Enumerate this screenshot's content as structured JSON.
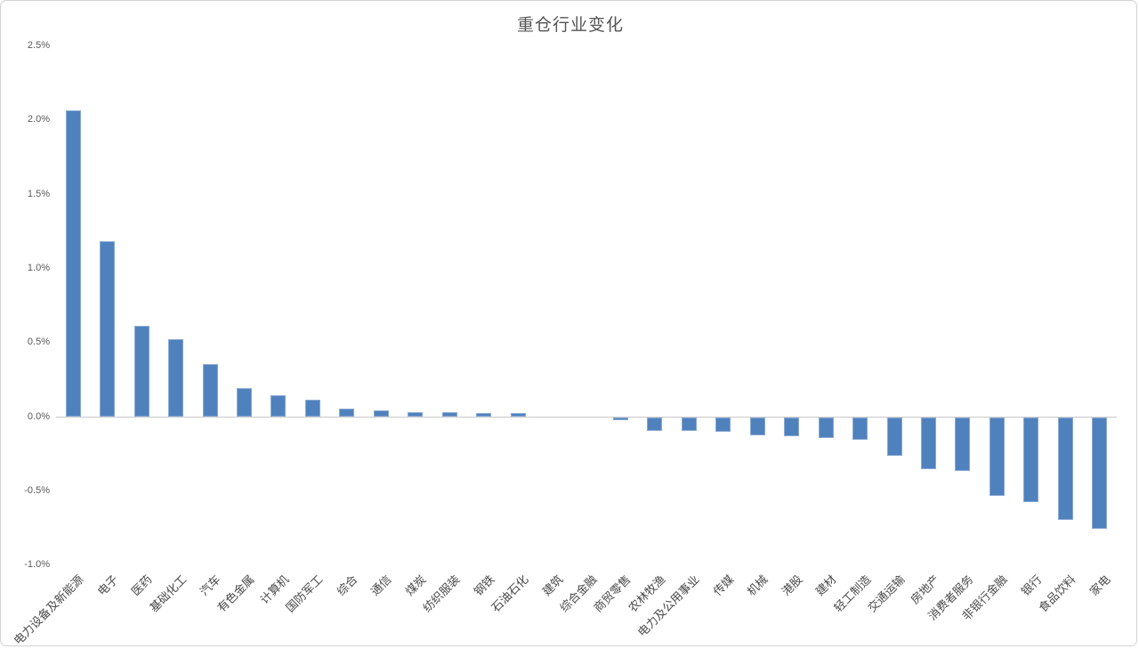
{
  "title": "重仓行业变化",
  "colors": {
    "bar_fill": "#4f81bd",
    "bar_border": "#87a9d4",
    "axis_line": "#c9c9c9",
    "axis_text": "#595959",
    "category_text": "#4a4a4a",
    "canvas_border": "#d2d2d2",
    "background": "#ffffff"
  },
  "y_axis": {
    "tick_labels": [
      "2.5%",
      "2.0%",
      "1.5%",
      "1.0%",
      "0.5%",
      "0.0%",
      "-0.5%",
      "-1.0%"
    ],
    "max": 2.5,
    "min": -1.0,
    "step": 0.5,
    "unit": "%"
  },
  "chart_data": {
    "type": "bar",
    "title": "重仓行业变化",
    "categories": [
      "电力设备及新能源",
      "电子",
      "医药",
      "基础化工",
      "汽车",
      "有色金属",
      "计算机",
      "国防军工",
      "综合",
      "通信",
      "煤炭",
      "纺织服装",
      "钢铁",
      "石油石化",
      "建筑",
      "综合金融",
      "商贸零售",
      "农林牧渔",
      "电力及公用事业",
      "传媒",
      "机械",
      "港股",
      "建材",
      "轻工制造",
      "交通运输",
      "房地产",
      "消费者服务",
      "非银行金融",
      "银行",
      "食品饮料",
      "家电"
    ],
    "values": [
      2.06,
      1.18,
      0.61,
      0.52,
      0.35,
      0.19,
      0.14,
      0.11,
      0.05,
      0.04,
      0.03,
      0.03,
      0.02,
      0.02,
      0.0,
      0.0,
      -0.02,
      -0.09,
      -0.09,
      -0.1,
      -0.12,
      -0.13,
      -0.14,
      -0.15,
      -0.26,
      -0.35,
      -0.36,
      -0.53,
      -0.57,
      -0.69,
      -0.75
    ],
    "value_unit": "%",
    "xlabel": "",
    "ylabel": "",
    "ylim": [
      -1.0,
      2.5
    ],
    "grid": false,
    "legend_position": "none",
    "x_label_rotation_deg": 45
  }
}
